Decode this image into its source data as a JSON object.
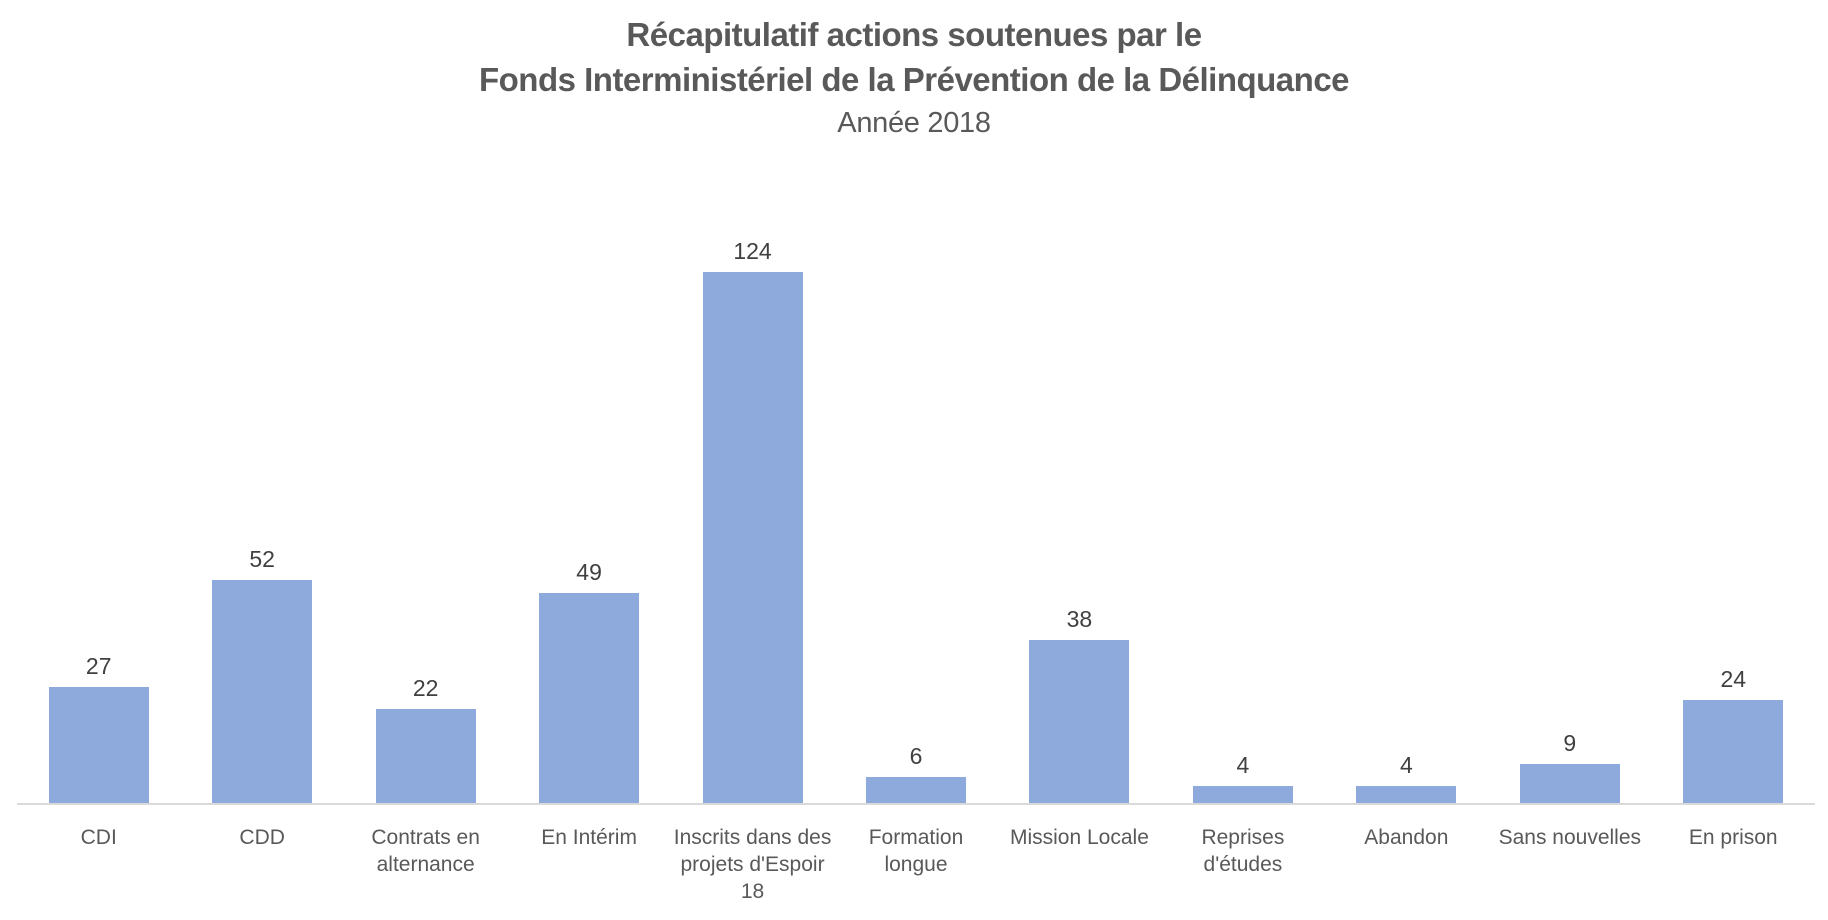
{
  "header": {
    "title_line1": "Récapitulatif actions soutenues par le",
    "title_line2": "Fonds Interministériel de la Prévention de la Délinquance",
    "subtitle": "Année 2018"
  },
  "chart_data": {
    "type": "bar",
    "title": "Récapitulatif actions soutenues par le Fonds Interministériel de la Prévention de la Délinquance",
    "subtitle": "Année 2018",
    "categories": [
      "CDI",
      "CDD",
      "Contrats en alternance",
      "En Intérim",
      "Inscrits dans des projets d'Espoir 18",
      "Formation longue",
      "Mission Locale",
      "Reprises d'études",
      "Abandon",
      "Sans nouvelles",
      "En prison"
    ],
    "values": [
      27,
      52,
      22,
      49,
      124,
      6,
      38,
      4,
      4,
      9,
      24
    ],
    "category_label_lines": [
      [
        "CDI"
      ],
      [
        "CDD"
      ],
      [
        "Contrats en",
        "alternance"
      ],
      [
        "En Intérim"
      ],
      [
        "Inscrits dans des",
        "projets d'Espoir",
        "18"
      ],
      [
        "Formation",
        "longue"
      ],
      [
        "Mission Locale"
      ],
      [
        "Reprises",
        "d'études"
      ],
      [
        "Abandon"
      ],
      [
        "Sans nouvelles"
      ],
      [
        "En prison"
      ]
    ],
    "xlabel": "",
    "ylabel": "",
    "series_count": 1,
    "data_labels_visible": true,
    "gridlines": false,
    "legend": false,
    "y_axis_visible": false,
    "colors": {
      "bar": "#8EA9DB",
      "axis_line": "#D9D9D9",
      "title": "#595959",
      "value_label": "#404040",
      "category_label": "#595959",
      "background": "#FFFFFF"
    }
  }
}
